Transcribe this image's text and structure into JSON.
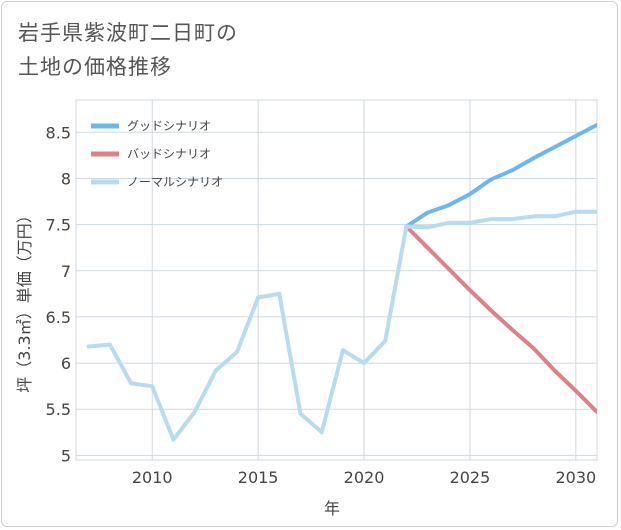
{
  "title": {
    "line1": "岩手県紫波町二日町の",
    "line2": "土地の価格推移"
  },
  "chart_data": {
    "type": "line",
    "xlabel": "年",
    "ylabel": "坪（3.3㎡）単価（万円）",
    "xlim": [
      2006.4,
      2031
    ],
    "ylim": [
      4.95,
      8.85
    ],
    "xticks": [
      2010,
      2015,
      2020,
      2025,
      2030
    ],
    "yticks": [
      5,
      5.5,
      6,
      6.5,
      7,
      7.5,
      8,
      8.5
    ],
    "xtick_labels": [
      "2010",
      "2015",
      "2020",
      "2025",
      "2030"
    ],
    "ytick_labels": [
      "5",
      "5.5",
      "6",
      "6.5",
      "7",
      "7.5",
      "8",
      "8.5"
    ],
    "grid": true,
    "legend_position": "top-left",
    "series": [
      {
        "name": "グッドシナリオ",
        "color": "#6cb8ee",
        "x": [
          2022,
          2023,
          2024,
          2025,
          2026,
          2027,
          2028,
          2029,
          2030,
          2031
        ],
        "values": [
          7.48,
          7.63,
          7.71,
          7.83,
          7.99,
          8.09,
          8.22,
          8.34,
          8.46,
          8.58
        ]
      },
      {
        "name": "バッドシナリオ",
        "color": "#dd8189",
        "x": [
          2022,
          2023,
          2024,
          2025,
          2026,
          2027,
          2028,
          2029,
          2030,
          2031
        ],
        "values": [
          7.48,
          7.25,
          7.02,
          6.79,
          6.57,
          6.36,
          6.16,
          5.92,
          5.7,
          5.47
        ]
      },
      {
        "name": "ノーマルシナリオ",
        "color": "#b6dced",
        "x": [
          2007,
          2008,
          2009,
          2010,
          2011,
          2012,
          2013,
          2014,
          2015,
          2016,
          2017,
          2018,
          2019,
          2020,
          2021,
          2022,
          2023,
          2024,
          2025,
          2026,
          2027,
          2028,
          2029,
          2030,
          2031
        ],
        "values": [
          6.18,
          6.2,
          5.78,
          5.75,
          5.17,
          5.47,
          5.92,
          6.12,
          6.71,
          6.75,
          5.45,
          5.25,
          6.14,
          6.0,
          6.24,
          7.48,
          7.47,
          7.52,
          7.52,
          7.56,
          7.56,
          7.59,
          7.59,
          7.64,
          7.64
        ]
      }
    ]
  }
}
